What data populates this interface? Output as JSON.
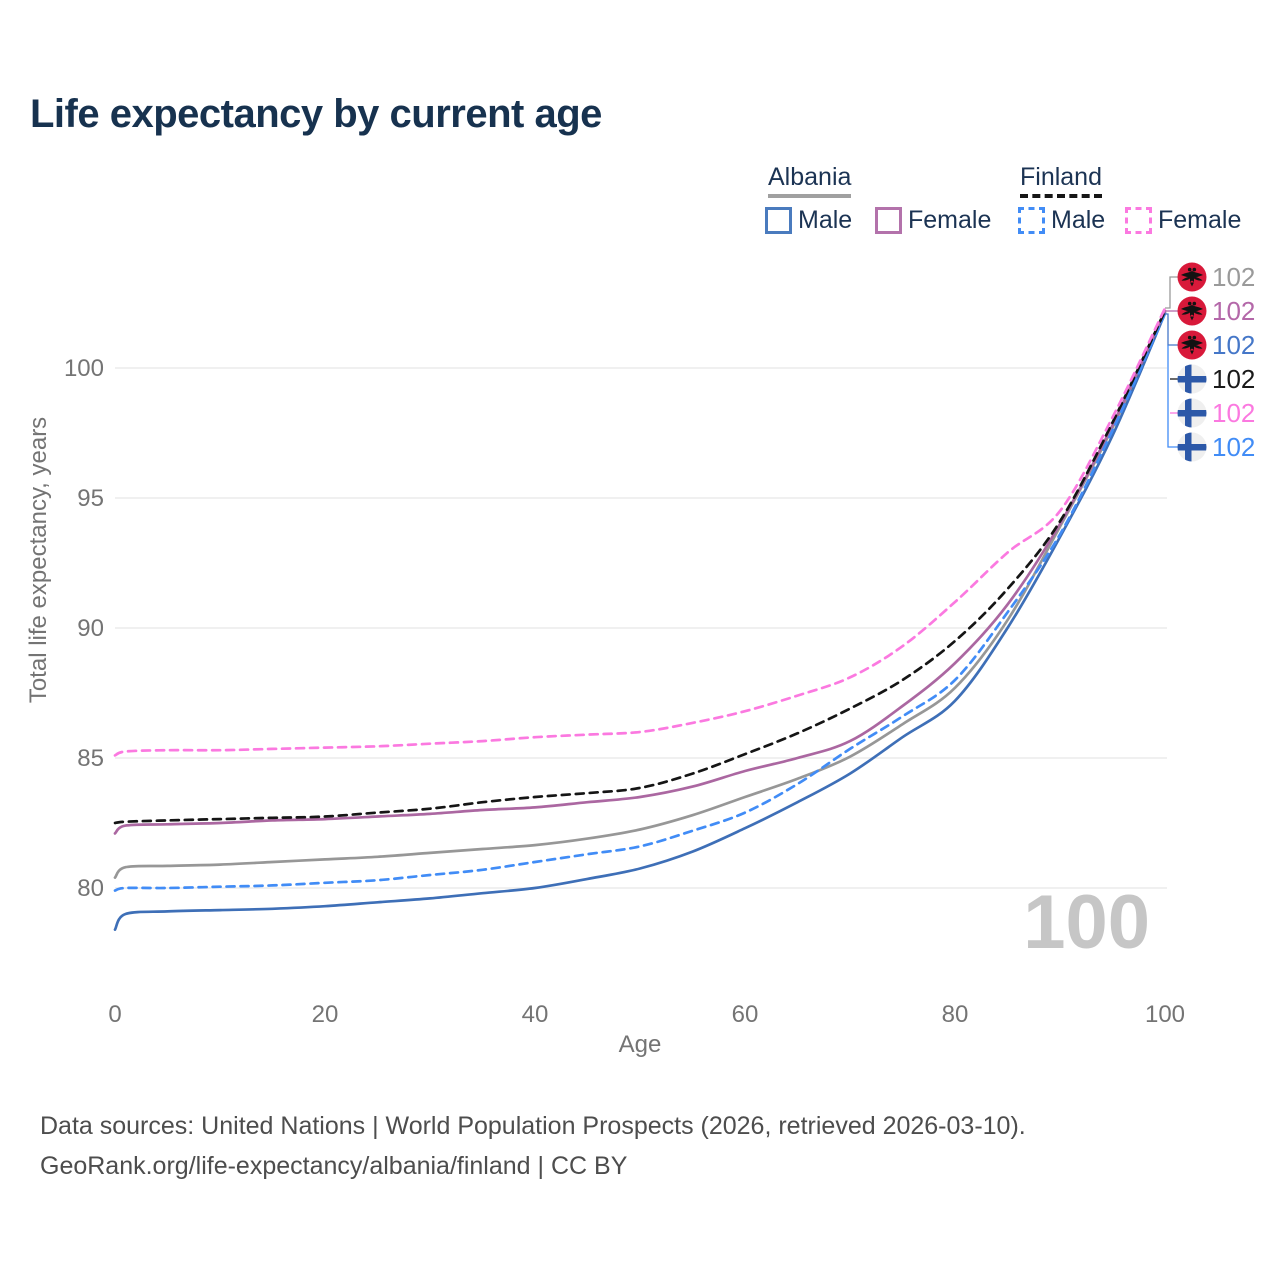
{
  "header": {
    "title": "Life expectancy by current age"
  },
  "legend": {
    "albania": {
      "label": "Albania",
      "male": "Male",
      "female": "Female"
    },
    "finland": {
      "label": "Finland",
      "male": "Male",
      "female": "Female"
    }
  },
  "footer": {
    "line1": "Data sources: United Nations | World Population Prospects (2026, retrieved 2026-03-10).",
    "line2": "GeoRank.org/life-expectancy/albania/finland | CC BY"
  },
  "colors": {
    "title_navy": "#17324f",
    "tick_gray": "#747474",
    "grid_gray": "#ebebeb",
    "watermark_gray": "#c6c6c6",
    "albania_flag_red": "#d8193a",
    "finland_flag_blue": "#2c58a8"
  },
  "chart_data": {
    "type": "line",
    "title": "Life expectancy by current age",
    "xlabel": "Age",
    "ylabel": "Total life expectancy, years",
    "xlim": [
      0,
      100
    ],
    "ylim": [
      77.5,
      103
    ],
    "xticks": [
      0,
      20,
      40,
      60,
      80,
      100
    ],
    "yticks": [
      80,
      85,
      90,
      95,
      100
    ],
    "grid": "horizontal-only",
    "legend_position": "top-right",
    "watermark": "100",
    "x": [
      0,
      1,
      5,
      10,
      15,
      20,
      25,
      30,
      35,
      40,
      45,
      50,
      55,
      60,
      65,
      70,
      75,
      80,
      85,
      90,
      95,
      100
    ],
    "series": [
      {
        "name": "Albania Both sexes",
        "country": "Albania",
        "sex": "both",
        "color": "#979797",
        "dash": false,
        "values": [
          80.4,
          80.8,
          80.85,
          80.9,
          81.0,
          81.1,
          81.2,
          81.35,
          81.5,
          81.65,
          81.9,
          82.25,
          82.8,
          83.5,
          84.2,
          85.05,
          86.3,
          87.7,
          90.3,
          93.9,
          97.7,
          102.15
        ],
        "end_label": "102"
      },
      {
        "name": "Albania Male",
        "country": "Albania",
        "sex": "male",
        "color": "#3e6fb7",
        "dash": false,
        "values": [
          78.4,
          79.0,
          79.1,
          79.15,
          79.2,
          79.3,
          79.45,
          79.6,
          79.8,
          80.0,
          80.35,
          80.75,
          81.4,
          82.3,
          83.3,
          84.4,
          85.8,
          87.2,
          90.0,
          93.5,
          97.4,
          102.1
        ],
        "end_label": "102"
      },
      {
        "name": "Albania Female",
        "country": "Albania",
        "sex": "female",
        "color": "#ab67a1",
        "dash": false,
        "values": [
          82.1,
          82.4,
          82.45,
          82.5,
          82.6,
          82.65,
          82.75,
          82.85,
          83.0,
          83.1,
          83.3,
          83.5,
          83.9,
          84.5,
          85.0,
          85.65,
          87.0,
          88.65,
          90.9,
          94.0,
          97.8,
          102.2
        ],
        "end_label": "102"
      },
      {
        "name": "Finland Male",
        "country": "Finland",
        "sex": "male",
        "color": "#418cf6",
        "dash": true,
        "values": [
          79.9,
          80.0,
          80.0,
          80.05,
          80.1,
          80.2,
          80.3,
          80.5,
          80.7,
          81.0,
          81.3,
          81.6,
          82.2,
          82.9,
          84.0,
          85.35,
          86.6,
          88.0,
          90.6,
          93.6,
          97.6,
          102.1
        ],
        "end_label": "102"
      },
      {
        "name": "Finland Both sexes",
        "country": "Finland",
        "sex": "both",
        "color": "#151515",
        "dash": true,
        "values": [
          82.5,
          82.55,
          82.6,
          82.65,
          82.7,
          82.75,
          82.9,
          83.05,
          83.3,
          83.5,
          83.65,
          83.85,
          84.4,
          85.15,
          85.95,
          86.9,
          88.0,
          89.5,
          91.5,
          94.1,
          97.9,
          102.2
        ],
        "end_label": "102"
      },
      {
        "name": "Finland Female",
        "country": "Finland",
        "sex": "female",
        "color": "#fb79e0",
        "dash": true,
        "values": [
          85.1,
          85.25,
          85.3,
          85.3,
          85.35,
          85.4,
          85.45,
          85.55,
          85.65,
          85.8,
          85.9,
          86.0,
          86.35,
          86.8,
          87.4,
          88.1,
          89.3,
          91.0,
          92.9,
          94.5,
          98.1,
          102.3
        ],
        "end_label": "102"
      }
    ],
    "end_labels": [
      {
        "flag": "albania",
        "text": "102",
        "color": "#9a9a9a",
        "series": "Albania Both sexes"
      },
      {
        "flag": "albania",
        "text": "102",
        "color": "#b468a9",
        "series": "Albania Female"
      },
      {
        "flag": "albania",
        "text": "102",
        "color": "#4577c8",
        "series": "Albania Male"
      },
      {
        "flag": "finland",
        "text": "102",
        "color": "#1a1a1a",
        "series": "Finland Both sexes"
      },
      {
        "flag": "finland",
        "text": "102",
        "color": "#fb79e0",
        "series": "Finland Female"
      },
      {
        "flag": "finland",
        "text": "102",
        "color": "#418cf6",
        "series": "Finland Male"
      }
    ]
  }
}
